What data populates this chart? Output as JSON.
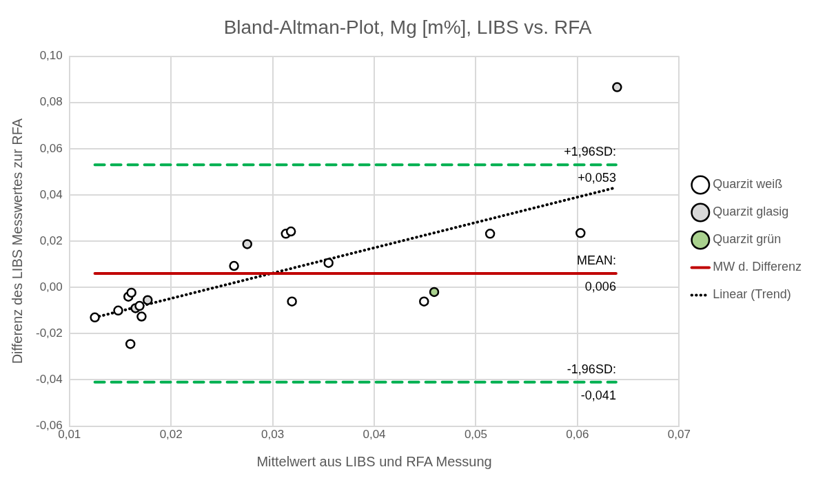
{
  "chart_data": {
    "type": "scatter",
    "title": "Bland-Altman-Plot, Mg [m%], LIBS vs. RFA",
    "xlabel": "Mittelwert aus LIBS und RFA Messung",
    "ylabel": "Differenz des LIBS Messwertes zur RFA",
    "xlim": [
      0.01,
      0.07
    ],
    "xticks": [
      {
        "value": 0.01,
        "label": "0,01"
      },
      {
        "value": 0.02,
        "label": "0,02"
      },
      {
        "value": 0.03,
        "label": "0,03"
      },
      {
        "value": 0.04,
        "label": "0,04"
      },
      {
        "value": 0.05,
        "label": "0,05"
      },
      {
        "value": 0.06,
        "label": "0,06"
      },
      {
        "value": 0.07,
        "label": "0,07"
      }
    ],
    "ylim": [
      -0.06,
      0.1
    ],
    "yticks": [
      {
        "value": -0.06,
        "label": "-0,06"
      },
      {
        "value": -0.04,
        "label": "-0,04"
      },
      {
        "value": -0.02,
        "label": "-0,02"
      },
      {
        "value": 0,
        "label": "0,00"
      },
      {
        "value": 0.02,
        "label": "0,02"
      },
      {
        "value": 0.04,
        "label": "0,04"
      },
      {
        "value": 0.06,
        "label": "0,06"
      },
      {
        "value": 0.08,
        "label": "0,08"
      },
      {
        "value": 0.1,
        "label": "0,10"
      }
    ],
    "grid": true,
    "legend": "right",
    "marker": "circle",
    "series": [
      {
        "name": "Quarzit weiß",
        "color": "#ffffff",
        "x": [
          0.0125,
          0.0148,
          0.0158,
          0.0161,
          0.016,
          0.0171,
          0.0169,
          0.0262,
          0.0313,
          0.0318,
          0.0319,
          0.0355,
          0.0449,
          0.0514,
          0.0603
        ],
        "values": [
          -0.013,
          -0.01,
          -0.004,
          -0.0023,
          -0.0245,
          -0.0126,
          -0.008,
          0.0093,
          0.0232,
          0.0242,
          -0.0061,
          0.0106,
          -0.0061,
          0.0232,
          0.0235
        ]
      },
      {
        "name": "Quarzit glasig",
        "color": "#d9d9d9",
        "x": [
          0.0275,
          0.0177,
          0.0165,
          0.0639
        ],
        "values": [
          0.0187,
          -0.0055,
          -0.009,
          0.0866
        ]
      },
      {
        "name": "Quarzit grün",
        "color": "#a9d18e",
        "x": [
          0.0459
        ],
        "values": [
          -0.002
        ]
      },
      {
        "name": "MW d. Differenz",
        "type": "line",
        "color": "#c00000",
        "line_style": "solid",
        "marker": "none",
        "x": [
          0.0125,
          0.0638
        ],
        "values": [
          0.006,
          0.006
        ]
      },
      {
        "name": "Linear (Trend)",
        "type": "line",
        "color": "#000000",
        "line_style": "dotted",
        "marker": "none",
        "x": [
          0.0125,
          0.0638
        ],
        "values": [
          -0.013,
          0.0432
        ]
      },
      {
        "type": "line",
        "color": "#00b050",
        "line_style": "dashed",
        "marker": "none",
        "x": [
          0.0125,
          0.0638
        ],
        "values": [
          0.053,
          0.053
        ]
      },
      {
        "type": "line",
        "color": "#00b050",
        "line_style": "dashed",
        "marker": "none",
        "x": [
          0.0125,
          0.0638
        ],
        "values": [
          -0.041,
          -0.041
        ]
      }
    ],
    "annotations": [
      {
        "text": "+1,96SD:\n+0,053",
        "y": 0.053
      },
      {
        "text": "MEAN:\n0,006",
        "y": 0.006
      },
      {
        "text": "-1,96SD:\n-0,041",
        "y": -0.041
      }
    ]
  }
}
